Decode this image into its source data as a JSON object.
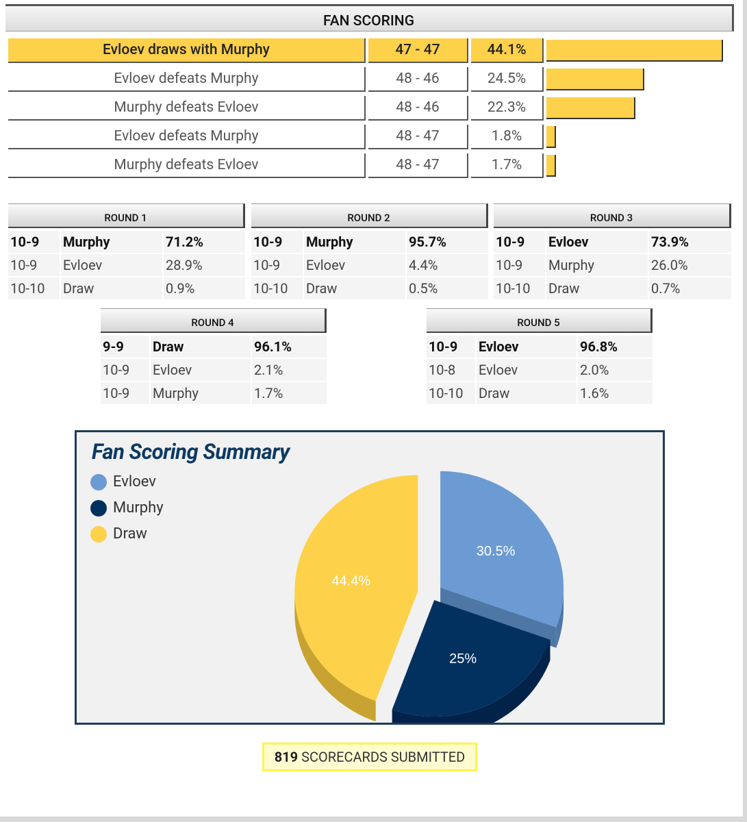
{
  "header": {
    "title": "FAN SCORING"
  },
  "outcomes": [
    {
      "label": "Evloev draws with Murphy",
      "score": "47 - 47",
      "pct_text": "44.1%",
      "pct": 44.1
    },
    {
      "label": "Evloev defeats Murphy",
      "score": "48 - 46",
      "pct_text": "24.5%",
      "pct": 24.5
    },
    {
      "label": "Murphy defeats Evloev",
      "score": "48 - 46",
      "pct_text": "22.3%",
      "pct": 22.3
    },
    {
      "label": "Evloev defeats Murphy",
      "score": "48 - 47",
      "pct_text": "1.8%",
      "pct": 1.8
    },
    {
      "label": "Murphy defeats Evloev",
      "score": "48 - 47",
      "pct_text": "1.7%",
      "pct": 1.7
    }
  ],
  "rounds": [
    {
      "title": "ROUND 1",
      "rows": [
        {
          "score": "10-9",
          "name": "Murphy",
          "pct": "71.2%"
        },
        {
          "score": "10-9",
          "name": "Evloev",
          "pct": "28.9%"
        },
        {
          "score": "10-10",
          "name": "Draw",
          "pct": "0.9%"
        }
      ]
    },
    {
      "title": "ROUND 2",
      "rows": [
        {
          "score": "10-9",
          "name": "Murphy",
          "pct": "95.7%"
        },
        {
          "score": "10-9",
          "name": "Evloev",
          "pct": "4.4%"
        },
        {
          "score": "10-10",
          "name": "Draw",
          "pct": "0.5%"
        }
      ]
    },
    {
      "title": "ROUND 3",
      "rows": [
        {
          "score": "10-9",
          "name": "Evloev",
          "pct": "73.9%"
        },
        {
          "score": "10-9",
          "name": "Murphy",
          "pct": "26.0%"
        },
        {
          "score": "10-10",
          "name": "Draw",
          "pct": "0.7%"
        }
      ]
    },
    {
      "title": "ROUND 4",
      "rows": [
        {
          "score": "9-9",
          "name": "Draw",
          "pct": "96.1%"
        },
        {
          "score": "10-9",
          "name": "Evloev",
          "pct": "2.1%"
        },
        {
          "score": "10-9",
          "name": "Murphy",
          "pct": "1.7%"
        }
      ]
    },
    {
      "title": "ROUND 5",
      "rows": [
        {
          "score": "10-9",
          "name": "Evloev",
          "pct": "96.8%"
        },
        {
          "score": "10-8",
          "name": "Evloev",
          "pct": "2.0%"
        },
        {
          "score": "10-10",
          "name": "Draw",
          "pct": "1.6%"
        }
      ]
    }
  ],
  "chart_data": {
    "type": "pie",
    "title": "Fan Scoring Summary",
    "labels": [
      "Evloev",
      "Murphy",
      "Draw"
    ],
    "values": [
      30.5,
      25,
      44.4
    ],
    "value_labels": [
      "30.5%",
      "25%",
      "44.4%"
    ],
    "colors": [
      "#6b9bd2",
      "#03315f",
      "#fdd14a"
    ],
    "side_colors": [
      "#4f77a6",
      "#02224a",
      "#c9a331"
    ],
    "legend": "top-left"
  },
  "footer": {
    "count": "819",
    "label": "SCORECARDS SUBMITTED"
  }
}
